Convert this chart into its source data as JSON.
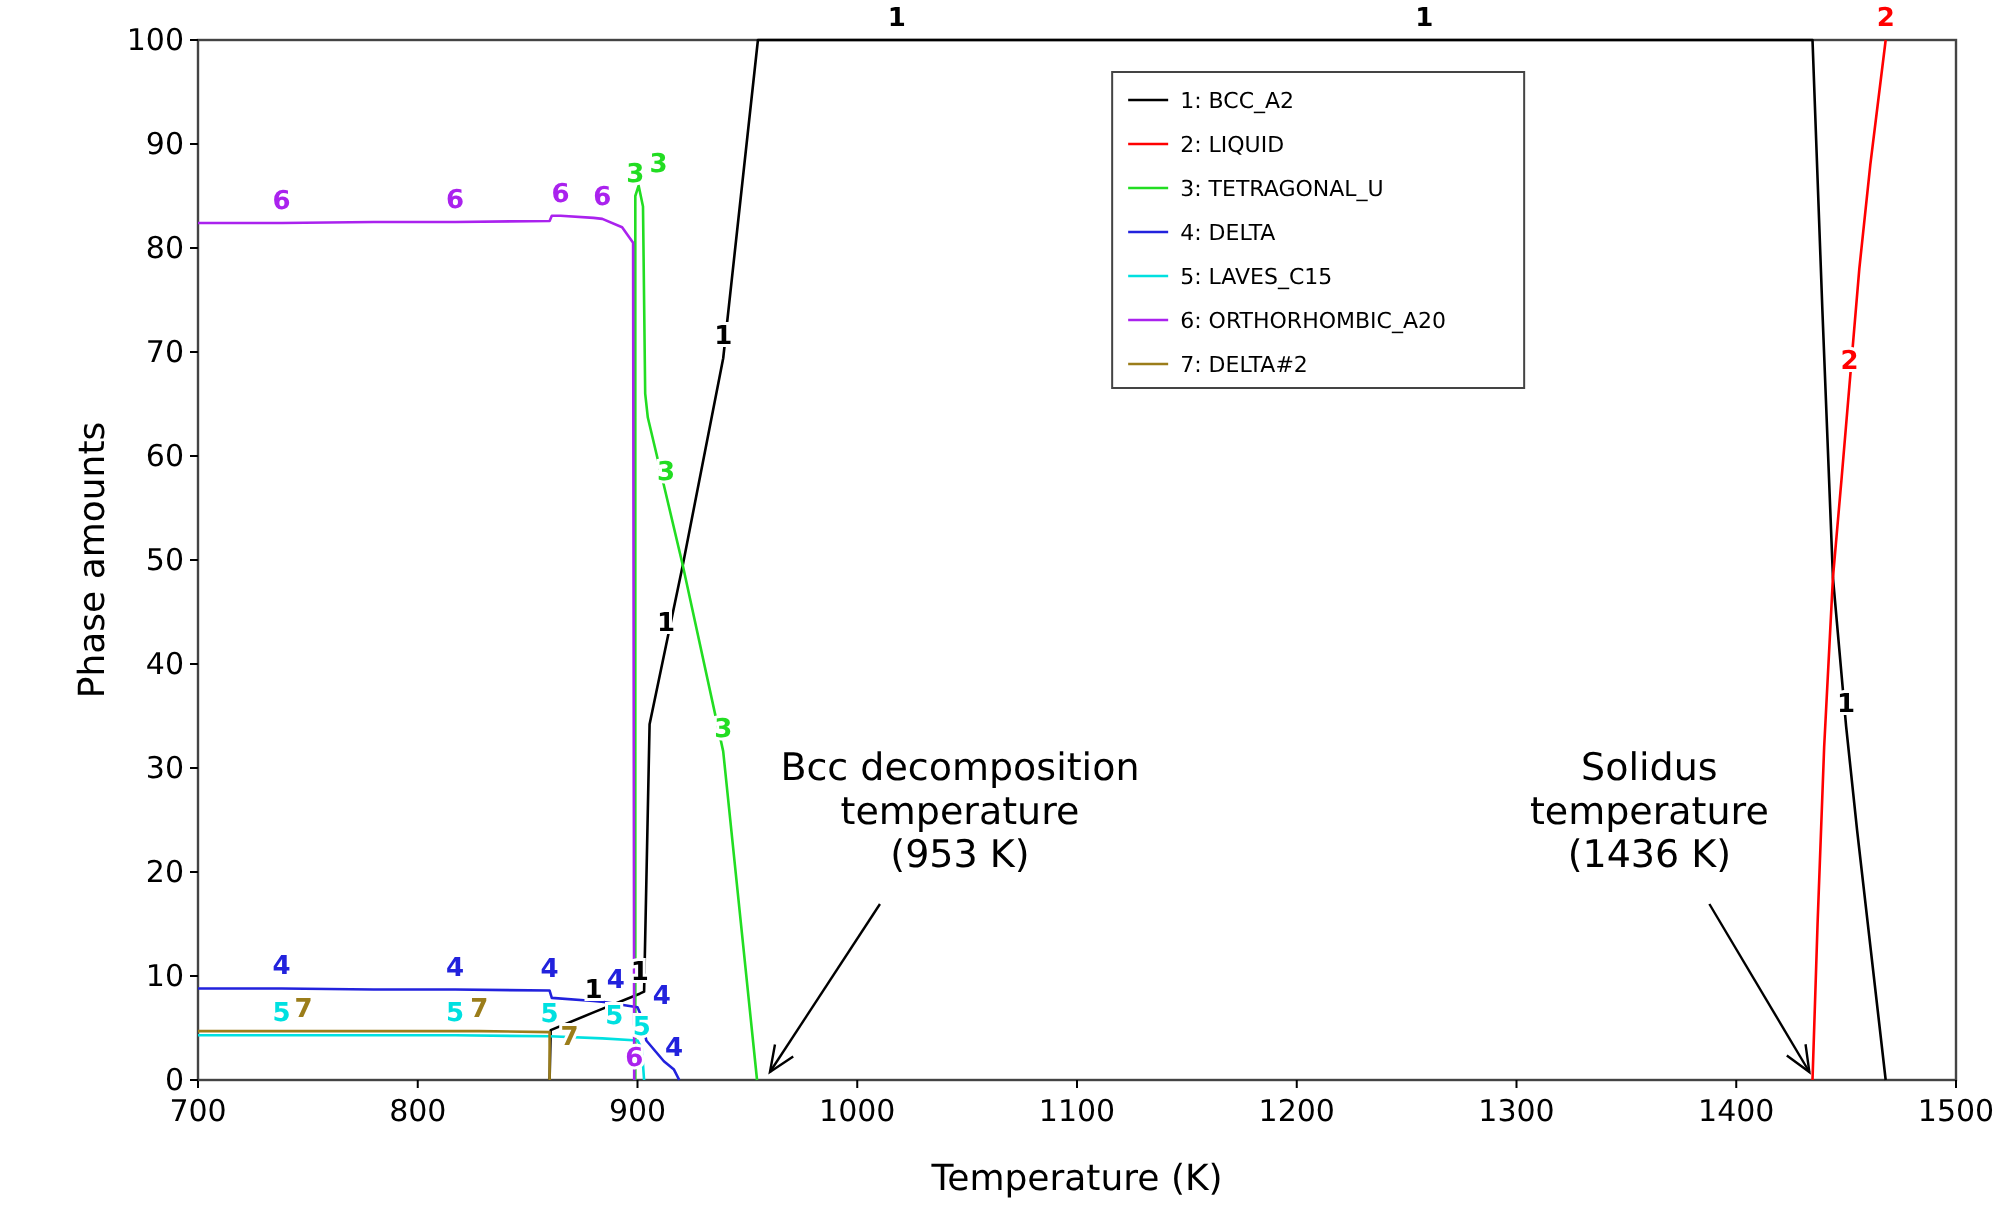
{
  "chart_data": {
    "type": "line",
    "xlabel": "Temperature (K)",
    "ylabel": "Phase amounts",
    "xlim": [
      700,
      1500
    ],
    "xticks": [
      700,
      800,
      900,
      1000,
      1100,
      1200,
      1300,
      1400,
      1500
    ],
    "ylim": [
      0,
      100
    ],
    "yticks": [
      0,
      10,
      20,
      30,
      40,
      50,
      60,
      70,
      80,
      90,
      100
    ],
    "grid": false,
    "legend": "top",
    "line_style": "solid",
    "series": [
      {
        "name": "1: BCC_A2",
        "color": "#000000",
        "x": [
          860,
          860.5,
          880,
          901,
          903,
          905.5,
          913,
          920.6,
          939,
          954.8,
          1018,
          1258,
          1434.7,
          1439.2,
          1444,
          1450,
          1455,
          1468
        ],
        "values": [
          0,
          4.8,
          6.5,
          8.3,
          8.5,
          34.2,
          41.8,
          49.5,
          69.4,
          100,
          100,
          100,
          100,
          74,
          48.3,
          34,
          24,
          0
        ]
      },
      {
        "name": "2: LIQUID",
        "color": "#ff0000",
        "x": [
          1434.7,
          1437,
          1440,
          1444,
          1448,
          1451.6,
          1456,
          1461,
          1468
        ],
        "values": [
          0,
          15,
          32,
          48.3,
          58,
          67,
          78,
          88,
          100
        ]
      },
      {
        "name": "3: TETRAGONAL_U",
        "color": "#22dd22",
        "x": [
          899,
          899,
          900.5,
          902.5,
          903.5,
          904.7,
          913,
          920.6,
          939,
          954.4
        ],
        "values": [
          0,
          85,
          86,
          84,
          66,
          63.7,
          56.3,
          49.5,
          31.6,
          0
        ]
      },
      {
        "name": "4: DELTA",
        "color": "#2222dd",
        "x": [
          700,
          738,
          780,
          817,
          860,
          861,
          880,
          884.7,
          900,
          902,
          904,
          912,
          916.6,
          919
        ],
        "values": [
          8.8,
          8.8,
          8.7,
          8.7,
          8.6,
          7.9,
          7.6,
          7.5,
          7,
          6,
          3.8,
          1.8,
          1,
          0
        ]
      },
      {
        "name": "5: LAVES_C15",
        "color": "#00e0e0",
        "x": [
          700,
          738,
          817,
          860,
          884,
          900,
          902,
          903
        ],
        "values": [
          4.3,
          4.3,
          4.3,
          4.2,
          4,
          3.8,
          3,
          0
        ]
      },
      {
        "name": "6: ORTHORHOMBIC_A20",
        "color": "#aa22ee",
        "x": [
          700,
          738,
          780,
          817,
          860,
          861,
          865,
          880,
          884,
          893,
          898,
          898.5
        ],
        "values": [
          82.4,
          82.4,
          82.5,
          82.5,
          82.6,
          83.1,
          83.1,
          82.9,
          82.8,
          82,
          80.5,
          0
        ]
      },
      {
        "name": "7: DELTA#2",
        "color": "#9b7d1a",
        "x": [
          700,
          748,
          828,
          860,
          860
        ],
        "values": [
          4.7,
          4.7,
          4.7,
          4.6,
          0
        ]
      }
    ],
    "annotations": [
      {
        "text": "1",
        "x": 880,
        "y": 6.5
      },
      {
        "text": "1",
        "x": 901,
        "y": 8.3
      },
      {
        "text": "1",
        "x": 913,
        "y": 41.8
      },
      {
        "text": "1",
        "x": 939,
        "y": 69.4
      },
      {
        "text": "1",
        "x": 1018,
        "y": 100
      },
      {
        "text": "1",
        "x": 1258,
        "y": 100
      },
      {
        "text": "1",
        "x": 1450,
        "y": 34
      },
      {
        "text": "2",
        "x": 1451.6,
        "y": 67
      },
      {
        "text": "2",
        "x": 1468,
        "y": 100
      },
      {
        "text": "3",
        "x": 899,
        "y": 85
      },
      {
        "text": "3",
        "x": 900.5,
        "y": 86
      },
      {
        "text": "3",
        "x": 913,
        "y": 56.3
      },
      {
        "text": "3",
        "x": 939,
        "y": 31.6
      },
      {
        "text": "4",
        "x": 738,
        "y": 8.8
      },
      {
        "text": "4",
        "x": 817,
        "y": 8.7
      },
      {
        "text": "4",
        "x": 860,
        "y": 8.6
      },
      {
        "text": "4",
        "x": 884.7,
        "y": 7.5
      },
      {
        "text": "4",
        "x": 902,
        "y": 6
      },
      {
        "text": "4",
        "x": 916.6,
        "y": 1
      },
      {
        "text": "5",
        "x": 738,
        "y": 4.3
      },
      {
        "text": "5",
        "x": 817,
        "y": 4.3
      },
      {
        "text": "5",
        "x": 860,
        "y": 4.2
      },
      {
        "text": "5",
        "x": 884,
        "y": 4
      },
      {
        "text": "5",
        "x": 902,
        "y": 3
      },
      {
        "text": "6",
        "x": 738,
        "y": 82.4
      },
      {
        "text": "6",
        "x": 817,
        "y": 82.5
      },
      {
        "text": "6",
        "x": 865,
        "y": 83.1
      },
      {
        "text": "6",
        "x": 884,
        "y": 82.8
      },
      {
        "text": "6",
        "x": 898.5,
        "y": 0
      },
      {
        "text": "7",
        "x": 748,
        "y": 4.7
      },
      {
        "text": "7",
        "x": 828,
        "y": 4.7
      },
      {
        "text": "7",
        "x": 860,
        "y": 2
      },
      {
        "text": "Bcc decomposition\ntemperature\n(953 K)",
        "x": 953,
        "y": 0
      },
      {
        "text": "Solidus\ntemperature\n(1436 K)",
        "x": 1436,
        "y": 0
      }
    ]
  }
}
